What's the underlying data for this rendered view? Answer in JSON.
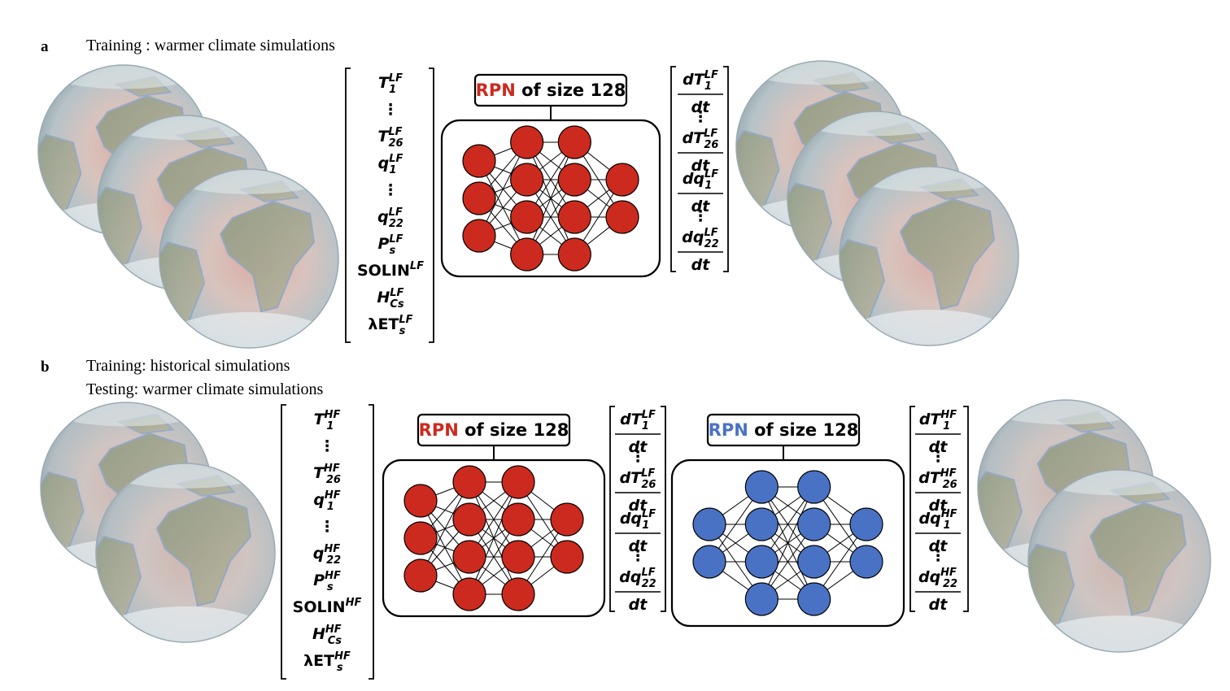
{
  "panel_a": {
    "letter": "a",
    "caption": "Training : warmer climate simulations",
    "inputs": [
      {
        "base": "T",
        "sup": "LF",
        "sub": "1"
      },
      {
        "base": "⋮"
      },
      {
        "base": "T",
        "sup": "LF",
        "sub": "26"
      },
      {
        "base": "q",
        "sup": "LF",
        "sub": "1"
      },
      {
        "base": "⋮"
      },
      {
        "base": "q",
        "sup": "LF",
        "sub": "22"
      },
      {
        "base": "P",
        "sup": "LF",
        "sub": "s"
      },
      {
        "base": "SOLIN",
        "sup": "LF",
        "sub": ""
      },
      {
        "base": "H",
        "sup": "LF",
        "sub": "Cs"
      },
      {
        "base": "λET",
        "sup": "LF",
        "sub": "s"
      }
    ],
    "outputs": [
      {
        "num": "dT",
        "sup": "LF",
        "sub": "1"
      },
      {
        "dots": true
      },
      {
        "num": "dT",
        "sup": "LF",
        "sub": "26"
      },
      {
        "num": "dq",
        "sup": "LF",
        "sub": "1"
      },
      {
        "dots": true
      },
      {
        "num": "dq",
        "sup": "LF",
        "sub": "22"
      }
    ],
    "rpn": {
      "name": "RPN",
      "rest": "of size 128",
      "color": "#cc2a1e"
    }
  },
  "panel_b": {
    "letter": "b",
    "caption_line1": "Training: historical simulations",
    "caption_line2": "Testing: warmer climate simulations",
    "inputs": [
      {
        "base": "T",
        "sup": "HF",
        "sub": "1"
      },
      {
        "base": "⋮"
      },
      {
        "base": "T",
        "sup": "HF",
        "sub": "26"
      },
      {
        "base": "q",
        "sup": "HF",
        "sub": "1"
      },
      {
        "base": "⋮"
      },
      {
        "base": "q",
        "sup": "HF",
        "sub": "22"
      },
      {
        "base": "P",
        "sup": "HF",
        "sub": "s"
      },
      {
        "base": "SOLIN",
        "sup": "HF",
        "sub": ""
      },
      {
        "base": "H",
        "sup": "HF",
        "sub": "Cs"
      },
      {
        "base": "λET",
        "sup": "HF",
        "sub": "s"
      }
    ],
    "mid_outputs": [
      {
        "num": "dT",
        "sup": "LF",
        "sub": "1"
      },
      {
        "dots": true
      },
      {
        "num": "dT",
        "sup": "LF",
        "sub": "26"
      },
      {
        "num": "dq",
        "sup": "LF",
        "sub": "1"
      },
      {
        "dots": true
      },
      {
        "num": "dq",
        "sup": "LF",
        "sub": "22"
      }
    ],
    "outputs": [
      {
        "num": "dT",
        "sup": "HF",
        "sub": "1"
      },
      {
        "dots": true
      },
      {
        "num": "dT",
        "sup": "HF",
        "sub": "26"
      },
      {
        "num": "dq",
        "sup": "HF",
        "sub": "1"
      },
      {
        "dots": true
      },
      {
        "num": "dq",
        "sup": "HF",
        "sub": "22"
      }
    ],
    "rpn_red": {
      "name": "RPN",
      "rest": "of size 128",
      "color": "#cc2a1e"
    },
    "rpn_blue": {
      "name": "RPN",
      "rest": "of size 128",
      "color": "#4a72c4"
    }
  },
  "fraction_denominator": "dt",
  "colors": {
    "red_node": "#cc2a1e",
    "blue_node": "#4a72c4"
  }
}
